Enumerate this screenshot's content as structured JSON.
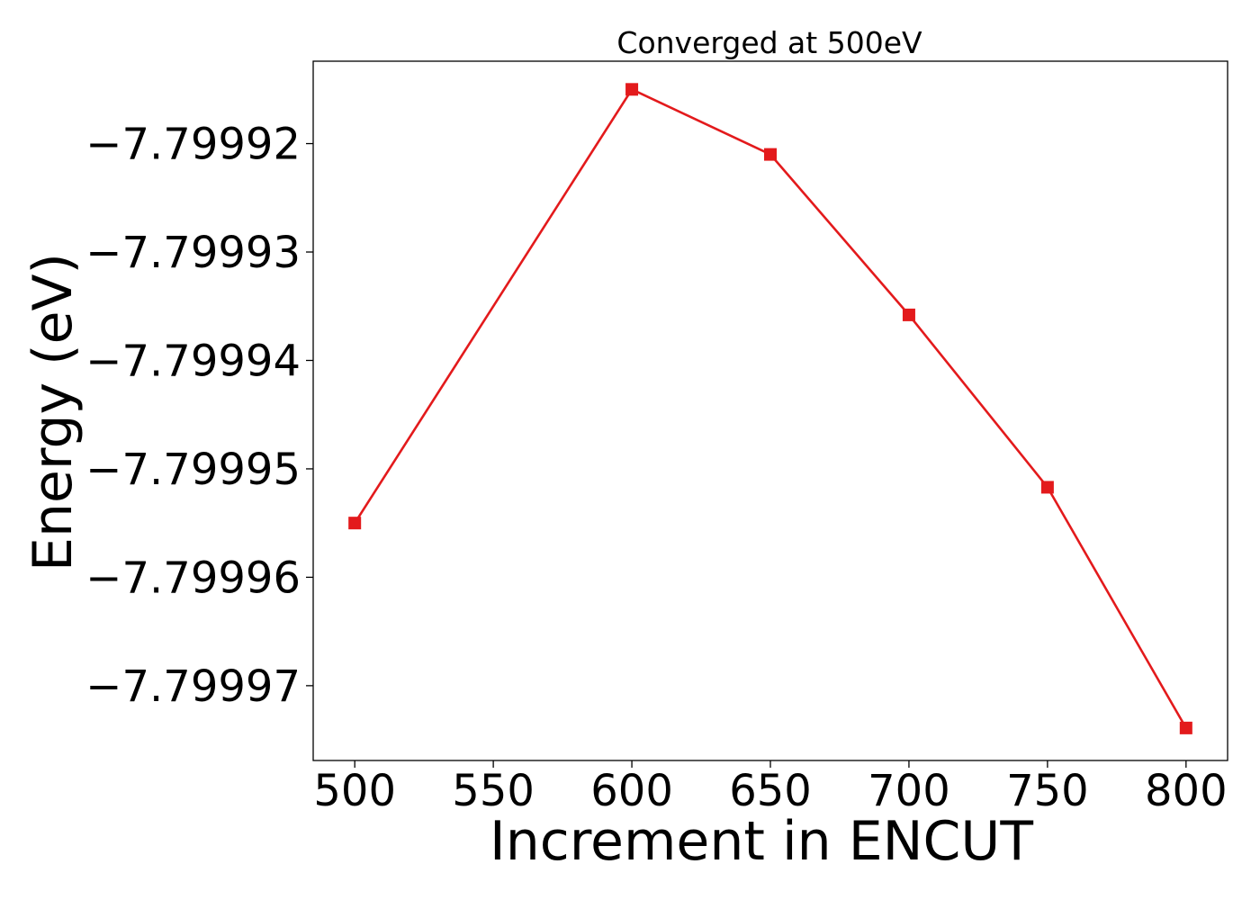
{
  "chart_data": {
    "type": "line",
    "title": "Converged at 500eV",
    "xlabel": "Increment in ENCUT",
    "ylabel": "Energy (eV)",
    "x": [
      500,
      600,
      650,
      700,
      750,
      800
    ],
    "series": [
      {
        "values": [
          -7.799955,
          -7.799915,
          -7.799921,
          -7.7999358,
          -7.7999517,
          -7.7999739
        ],
        "color": "#e31a1c",
        "marker": "square"
      }
    ],
    "xticks": [
      500,
      550,
      600,
      650,
      700,
      750,
      800
    ],
    "xtick_labels": [
      "500",
      "550",
      "600",
      "650",
      "700",
      "750",
      "800"
    ],
    "yticks": [
      -7.79992,
      -7.79993,
      -7.79994,
      -7.79995,
      -7.79996,
      -7.79997
    ],
    "ytick_labels": [
      "−7.79992",
      "−7.79993",
      "−7.79994",
      "−7.79995",
      "−7.79996",
      "−7.79997"
    ],
    "xlim": [
      485,
      815
    ],
    "ylim": [
      -7.7999769,
      -7.7999124
    ],
    "grid": false,
    "legend": false
  }
}
